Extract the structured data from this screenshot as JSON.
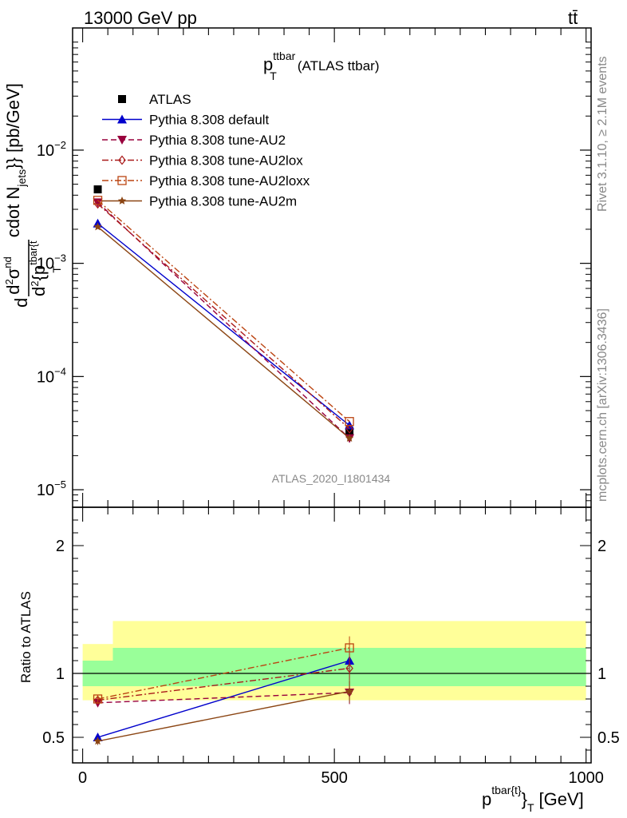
{
  "header": {
    "energy": "13000 GeV pp",
    "process": "tt̄"
  },
  "side_labels": {
    "rivet": "Rivet 3.1.10, ≥ 2.1M events",
    "mcplots": "mcplots.cern.ch [arXiv:1306.3436]"
  },
  "chart_data": [
    {
      "type": "line",
      "title_main": "p",
      "title_sup": "ttbar",
      "title_sub": "T",
      "title_rest": "(ATLAS ttbar)",
      "watermark": "ATLAS_2020_I1801434",
      "ylabel": "d d²σ^{nd} / d²{p^{tbar{t}}_T cdot N_{jets}}} [pb/GeV]",
      "ylabel_parts": {
        "d1": "d",
        "d2": "d",
        "sup2": "2",
        "sigma": "σ",
        "nd": "nd",
        "brace_p": "{p",
        "tbar": "tbar{t",
        "T": "T",
        "cdot": "cdot N",
        "jets": "jets",
        "units": "}} [pb/GeV]"
      },
      "yscale": "log",
      "ylim": [
        7e-06,
        0.12
      ],
      "xlim": [
        -20,
        1010
      ],
      "y_ticks": [
        {
          "value": 1e-05,
          "base": "10",
          "exp": "−5"
        },
        {
          "value": 0.0001,
          "base": "10",
          "exp": "−4"
        },
        {
          "value": 0.001,
          "base": "10",
          "exp": "−3"
        },
        {
          "value": 0.01,
          "base": "10",
          "exp": "−2"
        }
      ],
      "x": [
        30,
        530
      ],
      "series": [
        {
          "name": "ATLAS",
          "style": "data",
          "color": "#000000",
          "values": [
            0.0045,
            3.3e-05
          ],
          "errors": [
            0.0003,
            3e-06
          ]
        },
        {
          "name": "Pythia 8.308 default",
          "style": "solid",
          "marker": "triangle-up",
          "color": "#0000cc",
          "values": [
            0.00225,
            3.7e-05
          ]
        },
        {
          "name": "Pythia 8.308 tune-AU2",
          "style": "dashed",
          "marker": "triangle-down",
          "color": "#99003d",
          "values": [
            0.00345,
            2.85e-05
          ]
        },
        {
          "name": "Pythia 8.308 tune-AU2lox",
          "style": "dashdot",
          "marker": "diamond",
          "color": "#aa1a1a",
          "values": [
            0.00335,
            3.45e-05
          ]
        },
        {
          "name": "Pythia 8.308 tune-AU2loxx",
          "style": "dashdot",
          "marker": "square-open",
          "color": "#bb4411",
          "values": [
            0.0036,
            4e-05
          ]
        },
        {
          "name": "Pythia 8.308 tune-AU2m",
          "style": "solid",
          "marker": "star",
          "color": "#8b4513",
          "values": [
            0.0021,
            2.85e-05
          ]
        }
      ]
    },
    {
      "type": "line",
      "ylabel": "Ratio to ATLAS",
      "xlabel_parts": {
        "p": "p",
        "sup": "tbar{t}",
        "brace": "}",
        "sub": "T",
        "unit": "[GeV]"
      },
      "xlim": [
        -20,
        1010
      ],
      "ylim": [
        0.3,
        2.3
      ],
      "x_ticks": [
        "0",
        "500",
        "1000"
      ],
      "y_ticks": [
        "0.5",
        "1",
        "2"
      ],
      "y_tick_values": [
        0.5,
        1,
        2
      ],
      "x_tick_values": [
        0,
        500,
        1000
      ],
      "bands": [
        {
          "color": "#ffff99",
          "segments": [
            [
              0,
              60,
              0.79,
              1.23
            ],
            [
              60,
              1000,
              0.79,
              1.41
            ]
          ]
        },
        {
          "color": "#99ff99",
          "segments": [
            [
              0,
              60,
              0.9,
              1.1
            ],
            [
              60,
              1000,
              0.9,
              1.2
            ]
          ]
        }
      ],
      "x": [
        30,
        530
      ],
      "series": [
        {
          "name": "Pythia 8.308 default",
          "values": [
            0.5,
            1.1
          ]
        },
        {
          "name": "Pythia 8.308 tune-AU2",
          "values": [
            0.77,
            0.85
          ]
        },
        {
          "name": "Pythia 8.308 tune-AU2lox",
          "values": [
            0.79,
            1.04
          ]
        },
        {
          "name": "Pythia 8.308 tune-AU2loxx",
          "values": [
            0.8,
            1.2
          ]
        },
        {
          "name": "Pythia 8.308 tune-AU2m",
          "values": [
            0.47,
            0.86
          ]
        }
      ]
    }
  ]
}
